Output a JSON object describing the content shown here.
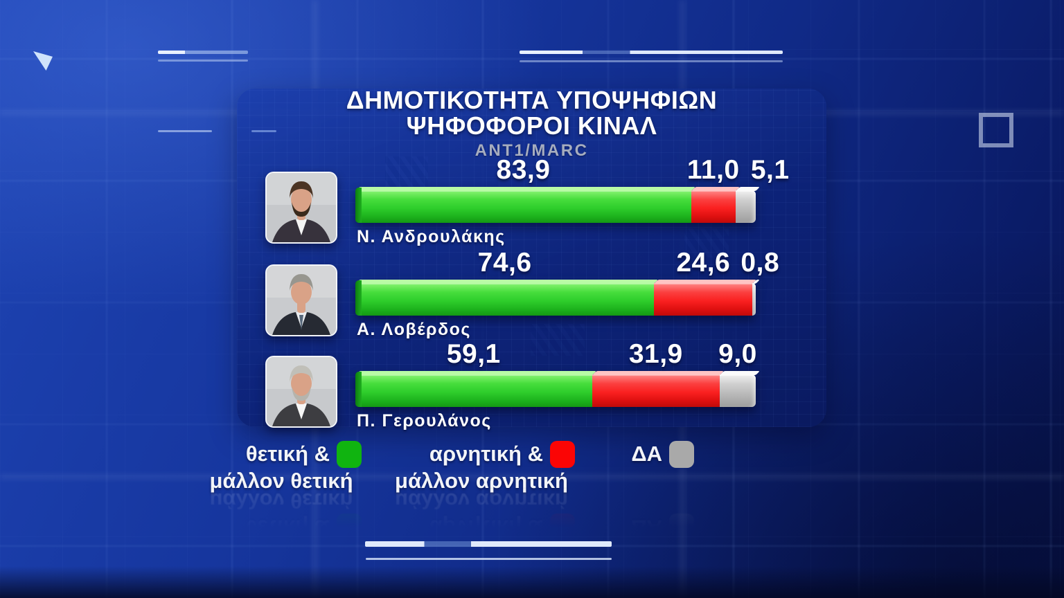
{
  "broadcast": {
    "title_line1": "ΔΗΜΟΤΙΚΟΤΗΤΑ ΥΠΟΨΗΦΙΩΝ",
    "title_line2": "ΨΗΦΟΦΟΡΟΙ ΚΙΝΑΛ",
    "source": "ANT1/MARC"
  },
  "chart_data": {
    "type": "bar",
    "orientation": "horizontal_stacked",
    "unit": "percent",
    "xlim": [
      0,
      100
    ],
    "grid": false,
    "legend_position": "bottom",
    "categories": [
      "Ν. Ανδρουλάκης",
      "Α. Λοβέρδος",
      "Π. Γερουλάνος"
    ],
    "series": [
      {
        "key": "positive",
        "name": "θετική & μάλλον θετική",
        "color": "#21c421",
        "values": [
          83.9,
          74.6,
          59.1
        ]
      },
      {
        "key": "negative",
        "name": "αρνητική & μάλλον αρνητική",
        "color": "#fa1a1a",
        "values": [
          11.0,
          24.6,
          31.9
        ]
      },
      {
        "key": "no_answer",
        "name": "ΔΑ",
        "color": "#b4b4b4",
        "values": [
          5.1,
          0.8,
          9.0
        ]
      }
    ],
    "value_labels": [
      [
        "83,9",
        "11,0",
        "5,1"
      ],
      [
        "74,6",
        "24,6",
        "0,8"
      ],
      [
        "59,1",
        "31,9",
        "9,0"
      ]
    ]
  },
  "legend": {
    "items": [
      {
        "line1": "θετική &",
        "line2": "μάλλον θετική",
        "color": "#10b410"
      },
      {
        "line1": "αρνητική &",
        "line2": "μάλλον αρνητική",
        "color": "#fb0505"
      },
      {
        "line1": "ΔΑ",
        "line2": "",
        "color": "#a9a9a9"
      }
    ]
  },
  "candidates": [
    {
      "name": "Ν. Ανδρουλάκης",
      "photo": {
        "bg": "#c6c8cb",
        "hair": "#4b3424",
        "beard": "#3a2a1c",
        "suit": "#37323c",
        "shirt": "#f4f4f4",
        "tie": ""
      }
    },
    {
      "name": "Α. Λοβέρδος",
      "photo": {
        "bg": "#c9cbce",
        "hair": "#97968f",
        "beard": "",
        "suit": "#262a33",
        "shirt": "#e9ebee",
        "tie": "#56677a"
      }
    },
    {
      "name": "Π. Γερουλάνος",
      "photo": {
        "bg": "#c7c9cc",
        "hair": "#c0bfb8",
        "beard": "#b5b4ad",
        "suit": "#3d3d41",
        "shirt": "#f6f6f6",
        "tie": ""
      }
    }
  ]
}
